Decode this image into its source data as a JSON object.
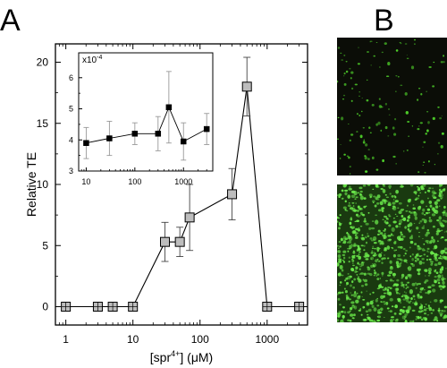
{
  "panel_labels": [
    "A",
    "B"
  ],
  "chart_data": [
    {
      "type": "line",
      "panel": "A",
      "xlabel_main": "[spr",
      "xlabel_sup": "4+",
      "xlabel_rest": "] (μM)",
      "ylabel": "Relative TE",
      "xscale": "log",
      "xlim": [
        0.7,
        4000
      ],
      "ylim": [
        -1.5,
        21.5
      ],
      "xticks": [
        1,
        10,
        100,
        1000
      ],
      "xtick_labels": [
        "1",
        "10",
        "100",
        "1000"
      ],
      "yticks": [
        0,
        5,
        10,
        15,
        20
      ],
      "ytick_labels": [
        "0",
        "5",
        "10",
        "15",
        "20"
      ],
      "marker": "square-gray",
      "points": [
        {
          "x": 1,
          "y": 0,
          "err": 0
        },
        {
          "x": 3,
          "y": 0,
          "err": 0
        },
        {
          "x": 5,
          "y": 0,
          "err": 0
        },
        {
          "x": 10,
          "y": 0,
          "err": 0
        },
        {
          "x": 30,
          "y": 5.3,
          "err": 1.6
        },
        {
          "x": 50,
          "y": 5.3,
          "err": 1.2
        },
        {
          "x": 70,
          "y": 7.3,
          "err": 2.7
        },
        {
          "x": 300,
          "y": 9.2,
          "err": 2.1
        },
        {
          "x": 500,
          "y": 18.0,
          "err": 2.4
        },
        {
          "x": 1000,
          "y": 0,
          "err": 0
        },
        {
          "x": 3000,
          "y": 0,
          "err": 0
        }
      ],
      "color": "#000000",
      "marker_fill": "#bdbdbd"
    },
    {
      "type": "line",
      "panel": "A-inset",
      "y_multiplier_label": "x10",
      "y_multiplier_exp": "-4",
      "xscale": "log",
      "xlim": [
        7,
        4000
      ],
      "ylim": [
        3,
        6.8
      ],
      "xticks": [
        10,
        100,
        1000
      ],
      "xtick_labels": [
        "10",
        "100",
        "1000"
      ],
      "yticks": [
        3,
        4,
        5,
        6
      ],
      "ytick_labels": [
        "3",
        "4",
        "5",
        "6"
      ],
      "marker": "square-black",
      "points": [
        {
          "x": 10,
          "y": 3.9,
          "err": 0.5
        },
        {
          "x": 30,
          "y": 4.05,
          "err": 0.55
        },
        {
          "x": 100,
          "y": 4.2,
          "err": 0.35
        },
        {
          "x": 300,
          "y": 4.2,
          "err": 0.55
        },
        {
          "x": 500,
          "y": 5.05,
          "err": 1.15
        },
        {
          "x": 1000,
          "y": 3.95,
          "err": 0.6
        },
        {
          "x": 3000,
          "y": 4.35,
          "err": 0.5
        }
      ],
      "color": "#000000",
      "marker_fill": "#000000"
    }
  ],
  "images": [
    {
      "name": "micrograph-low-transfection",
      "background": "#0b0d07",
      "spot_color": "#4fd12a",
      "spot_density": "sparse"
    },
    {
      "name": "micrograph-high-transfection",
      "background": "#1a3a10",
      "spot_color": "#6ae84a",
      "spot_density": "dense"
    }
  ]
}
